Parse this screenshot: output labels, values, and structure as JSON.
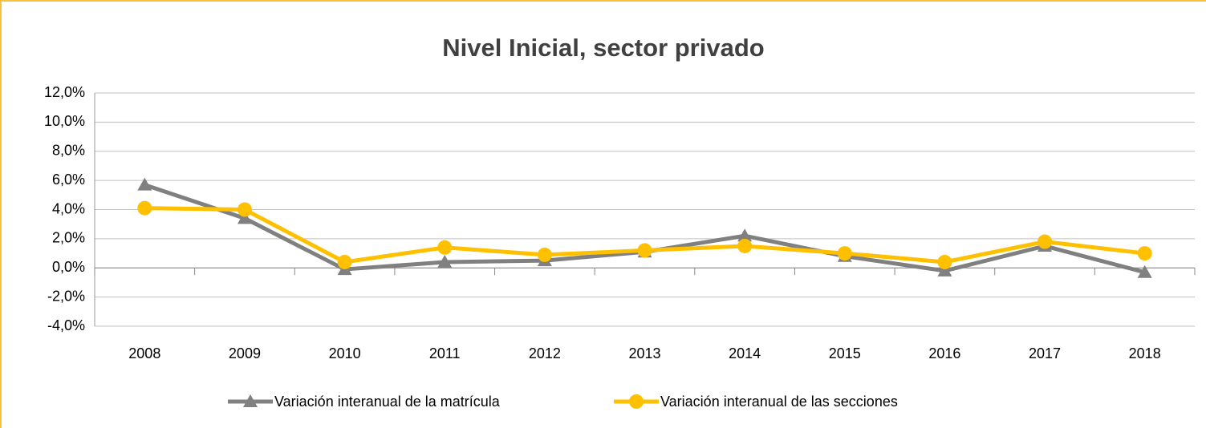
{
  "chart_data": {
    "type": "line",
    "title": "Nivel Inicial, sector privado",
    "categories": [
      "2008",
      "2009",
      "2010",
      "2011",
      "2012",
      "2013",
      "2014",
      "2015",
      "2016",
      "2017",
      "2018"
    ],
    "series": [
      {
        "name": "Variación interanual de la matrícula",
        "color": "#808080",
        "marker": "triangle",
        "values": [
          5.7,
          3.4,
          -0.1,
          0.4,
          0.5,
          1.1,
          2.2,
          0.8,
          -0.2,
          1.5,
          -0.3
        ]
      },
      {
        "name": "Variación interanual de las secciones",
        "color": "#ffc000",
        "marker": "circle",
        "values": [
          4.1,
          4.0,
          0.4,
          1.4,
          0.9,
          1.2,
          1.5,
          1.0,
          0.4,
          1.8,
          1.0
        ]
      }
    ],
    "ylim": [
      -4,
      12
    ],
    "yticks": [
      {
        "value": -4,
        "label": "-4,0%"
      },
      {
        "value": -2,
        "label": "-2,0%"
      },
      {
        "value": 0,
        "label": "0,0%"
      },
      {
        "value": 2,
        "label": "2,0%"
      },
      {
        "value": 4,
        "label": "4,0%"
      },
      {
        "value": 6,
        "label": "6,0%"
      },
      {
        "value": 8,
        "label": "8,0%"
      },
      {
        "value": 10,
        "label": "10,0%"
      },
      {
        "value": 12,
        "label": "12,0%"
      }
    ],
    "grid": true,
    "legend": "bottom"
  }
}
